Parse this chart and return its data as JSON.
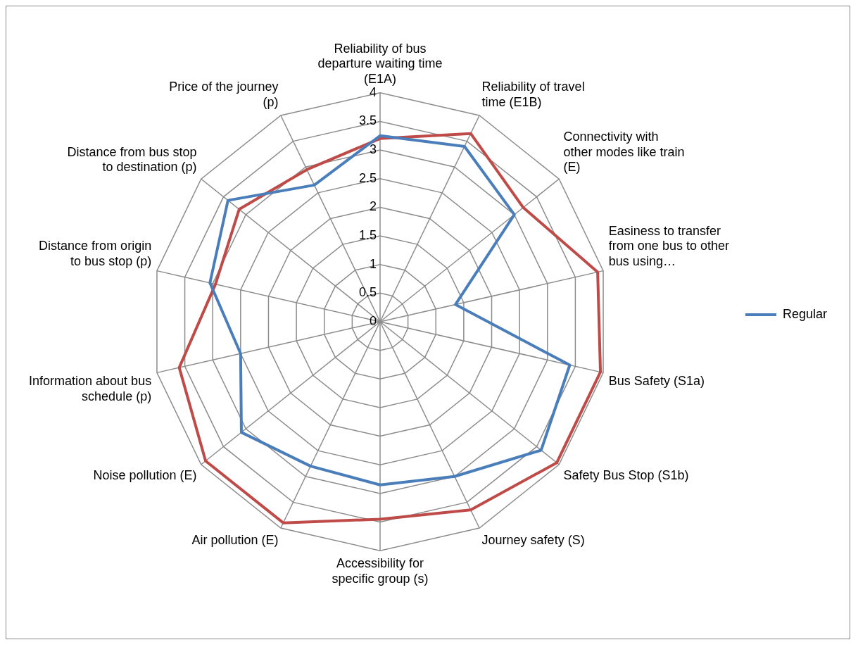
{
  "chart_data": {
    "type": "radar",
    "categories": [
      "Reliability of bus departure waiting time (E1A)",
      "Reliability of travel time (E1B)",
      "Connectivity with other modes like train (E)",
      "Easiness to transfer from one bus to other bus using…",
      "Bus Safety (S1a)",
      "Safety Bus Stop (S1b)",
      "Journey safety (S)",
      "Accessibility for specific group (s)",
      "Air pollution (E)",
      "Noise pollution (E)",
      "Information about bus schedule (p)",
      "Distance from origin to bus stop (p)",
      "Distance from bus stop to destination (p)",
      "Price of the journey (p)"
    ],
    "series": [
      {
        "name": "Regular",
        "color": "#4a7ebb",
        "values": [
          3.25,
          3.4,
          3.0,
          1.35,
          3.4,
          3.6,
          3.0,
          2.85,
          2.8,
          3.1,
          2.5,
          3.05,
          3.4,
          2.65
        ]
      },
      {
        "color": "#be4b48",
        "values": [
          3.2,
          3.65,
          3.2,
          3.9,
          3.95,
          3.95,
          3.65,
          3.45,
          3.9,
          3.9,
          3.6,
          2.95,
          3.15,
          2.95
        ]
      }
    ],
    "ylim": [
      0,
      4
    ],
    "yticks": [
      0,
      0.5,
      1,
      1.5,
      2,
      2.5,
      3,
      3.5,
      4
    ],
    "grid": true,
    "legend": "right",
    "marker": "none",
    "line_style": "solid"
  }
}
